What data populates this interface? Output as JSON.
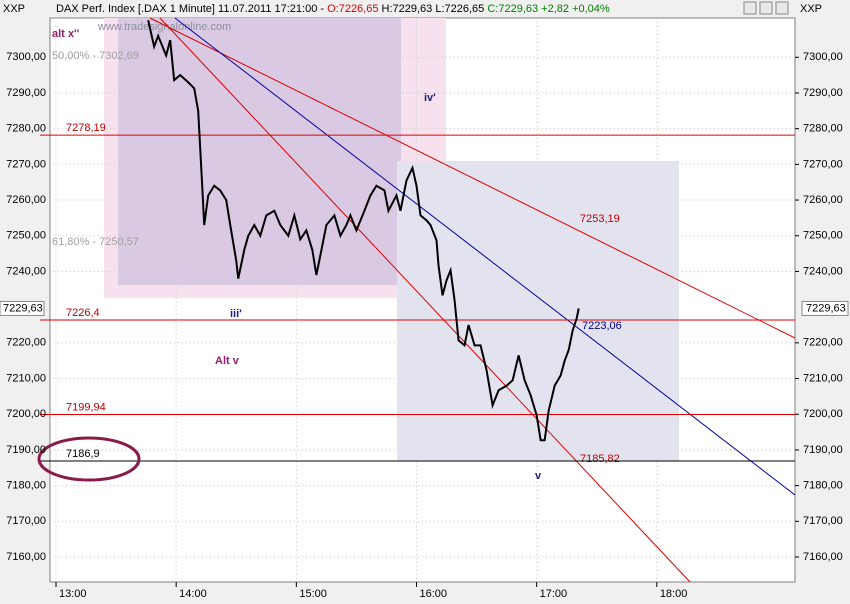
{
  "chart_data": {
    "type": "line",
    "symbol_left": "XXP",
    "symbol_right": "XXP",
    "title": "DAX Perf. Index [.DAX  1 Minute] 11.07.2011 17:21:00 -",
    "open_text": "O:7226,65",
    "high_low_text": "H:7229,63 L:7226,65",
    "close_text": "C:7229,63 +2,82 +0,04%",
    "watermark": "www.tradesignalonline.com",
    "x": [
      "13:46",
      "13:49",
      "13:51",
      "13:55",
      "13:57",
      "13:59",
      "14:02",
      "14:06",
      "14:09",
      "14:11",
      "14:13",
      "14:14",
      "14:16",
      "14:19",
      "14:22",
      "14:25",
      "14:27",
      "14:30",
      "14:31",
      "14:34",
      "14:36",
      "14:39",
      "14:42",
      "14:45",
      "14:49",
      "14:52",
      "14:56",
      "14:59",
      "15:02",
      "15:05",
      "15:08",
      "15:10",
      "15:12",
      "15:15",
      "15:19",
      "15:22",
      "15:25",
      "15:27",
      "15:30",
      "15:34",
      "15:37",
      "15:40",
      "15:44",
      "15:46",
      "15:50",
      "15:52",
      "15:55",
      "15:58",
      "16:00",
      "16:02",
      "16:05",
      "16:07",
      "16:10",
      "16:11",
      "16:13",
      "16:15",
      "16:17",
      "16:19",
      "16:21",
      "16:24",
      "16:26",
      "16:29",
      "16:32",
      "16:35",
      "16:38",
      "16:41",
      "16:45",
      "16:48",
      "16:51",
      "16:54",
      "16:57",
      "17:00",
      "17:02",
      "17:04",
      "17:06",
      "17:09",
      "17:12",
      "17:14",
      "17:16",
      "17:18",
      "17:20",
      "17:21"
    ],
    "series": [
      {
        "name": "DAX",
        "color": "#000000",
        "values": [
          7310.4,
          7303,
          7306,
          7300.5,
          7304.8,
          7293.6,
          7295,
          7293,
          7291.3,
          7285,
          7264,
          7253,
          7261.3,
          7264,
          7262.7,
          7260,
          7253,
          7243,
          7238,
          7246,
          7250,
          7253,
          7250,
          7255.7,
          7257,
          7253,
          7250,
          7255.7,
          7249,
          7251.5,
          7246,
          7239,
          7244.5,
          7253,
          7255.7,
          7250,
          7253,
          7255.7,
          7251.5,
          7257,
          7261.3,
          7264,
          7262.7,
          7257,
          7261.3,
          7257,
          7265.5,
          7269,
          7264,
          7255.7,
          7254.3,
          7253,
          7248.7,
          7241.7,
          7233.3,
          7237.5,
          7240.3,
          7232,
          7220.7,
          7219.3,
          7225,
          7219.3,
          7219.3,
          7212.3,
          7202.5,
          7206.7,
          7208,
          7209.5,
          7216.5,
          7209.5,
          7205.3,
          7199.7,
          7192.7,
          7192.7,
          7201,
          7208,
          7210.9,
          7215,
          7218,
          7223.5,
          7226.9,
          7229.63
        ]
      }
    ],
    "xlim": [
      "12:57",
      "19:09"
    ],
    "xticks": [
      "13:00",
      "14:00",
      "15:00",
      "16:00",
      "17:00",
      "18:00"
    ],
    "ylim": [
      7153,
      7311
    ],
    "yticks": [
      {
        "value": 7160,
        "label": "7160,00"
      },
      {
        "value": 7170,
        "label": "7170,00"
      },
      {
        "value": 7180,
        "label": "7180,00"
      },
      {
        "value": 7190,
        "label": "7190,00"
      },
      {
        "value": 7200,
        "label": "7200,00"
      },
      {
        "value": 7210,
        "label": "7210,00"
      },
      {
        "value": 7220,
        "label": "7220,00"
      },
      {
        "value": 7240,
        "label": "7240,00"
      },
      {
        "value": 7250,
        "label": "7250,00"
      },
      {
        "value": 7260,
        "label": "7260,00"
      },
      {
        "value": 7270,
        "label": "7270,00"
      },
      {
        "value": 7280,
        "label": "7280,00"
      },
      {
        "value": 7290,
        "label": "7290,00"
      },
      {
        "value": 7300,
        "label": "7300,00"
      }
    ],
    "grid": true,
    "last_price": {
      "value": 7229.63,
      "label": "7229,63"
    },
    "levels": [
      {
        "value": 7278.19,
        "label": "7278,19",
        "color": "#e00000"
      },
      {
        "value": 7226.4,
        "label": "7226,4",
        "color": "#e00000"
      },
      {
        "value": 7199.94,
        "label": "7199,94",
        "color": "#e00000"
      },
      {
        "value": 7186.9,
        "label": "7186,9",
        "color": "#000000"
      }
    ],
    "annotations": [
      "50,00% - 7302,69",
      "61,80% - 7250,57",
      "7253,19",
      "7223,06",
      "7185,82",
      "alt x''",
      "iv'",
      "iii'",
      "Alt v",
      "v"
    ]
  }
}
